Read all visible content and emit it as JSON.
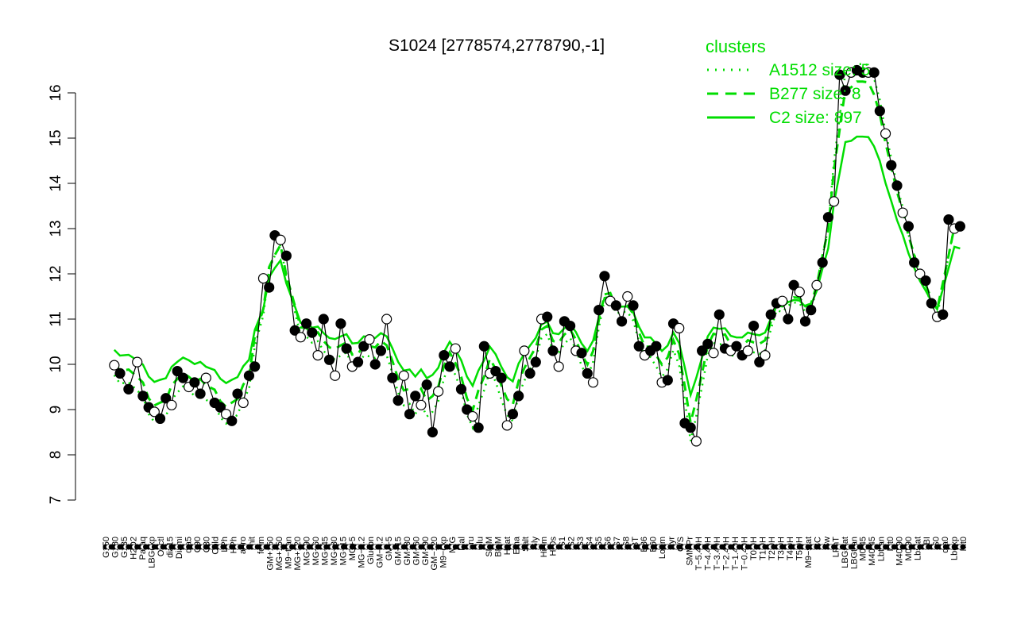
{
  "chart_data": {
    "type": "line",
    "title": "S1024 [2778574,2778790,-1]",
    "xlabel": "",
    "ylabel": "",
    "ylim": [
      7,
      16.5
    ],
    "yticks": [
      7,
      8,
      9,
      10,
      11,
      12,
      13,
      14,
      15,
      16
    ],
    "grid": false,
    "legend": {
      "title": "clusters",
      "placement": "top-right",
      "entries": [
        {
          "label": "A1512 size: 5",
          "style": "dotted"
        },
        {
          "label": "B277 size: 8",
          "style": "dashed"
        },
        {
          "label": "C2 size: 897",
          "style": "solid"
        }
      ]
    },
    "colors": {
      "cluster": "#00dd00",
      "marker": "#000000"
    },
    "x_labels": [
      "G150",
      "G180",
      "G135",
      "H2O2",
      "Paraq",
      "LBGexp",
      "Oxctl",
      "dia15",
      "Diami",
      "dia5",
      "C90",
      "C30",
      "Cold",
      "LPh",
      "HPh",
      "aero",
      "nit",
      "ferm",
      "GM+150",
      "MG+150",
      "M9-tran",
      "MG+120",
      "MG+90",
      "MG+60",
      "MG+45",
      "MG+30",
      "MG+15",
      "MG+5",
      "MG-0.2",
      "Glucon",
      "GM-0.2",
      "GM-5",
      "GM-15",
      "GM-30",
      "GM-60",
      "GM-90",
      "GM-120",
      "M9-exp",
      "M/G",
      "Mal",
      "Fru",
      "Glu",
      "SMM",
      "BMM",
      "Heat",
      "Etha",
      "Salt",
      "Gly",
      "HiTm",
      "HiOs",
      "S1",
      "S2",
      "S3",
      "S4",
      "S5",
      "S6",
      "S7",
      "S8",
      "BT",
      "B36",
      "B60",
      "LoTm",
      "Pyr",
      "G/S",
      "SMMPr",
      "T-5.40H",
      "T-4.40H",
      "T-3.40H",
      "T-2.40H",
      "T-1.40H",
      "T-0.40H",
      "T0.0H",
      "T1.0H",
      "T2.0H",
      "T3.0H",
      "T4.0H",
      "T5.0H",
      "M9-stat",
      "BC",
      "Sw",
      "LPhT",
      "LBGstat",
      "LBGtran",
      "M0t45",
      "M40t45",
      "Lbtran",
      "Mt0",
      "M40t90",
      "M0t90",
      "Lbstat",
      "BI",
      "S0",
      "dia0",
      "Lbexp",
      "Mt0b"
    ],
    "x_label_text": [
      "G150",
      "G180",
      "G135",
      "H2O2",
      "Paraq",
      "LBGexp",
      "Oxctl",
      "dia15",
      "Diami",
      "dia5",
      "C90",
      "C30",
      "Cold",
      "LPh",
      "HPh",
      "aero",
      "nit",
      "ferm",
      "GM+150",
      "MG+150",
      "M9−tran",
      "MG+120",
      "MG+90",
      "MG+60",
      "MG+45",
      "MG+30",
      "MG+15",
      "MG+5",
      "MG−0.2",
      "Glucon",
      "GM−0.2",
      "GM−5",
      "GM−15",
      "GM−30",
      "GM−60",
      "GM−90",
      "GM−120",
      "M9−exp",
      "M/G",
      "Mal",
      "Fru",
      "Glu",
      "SMM",
      "BMM",
      "Heat",
      "Etha",
      "Salt",
      "Gly",
      "HiTm",
      "HiOs",
      "S1",
      "S2",
      "S3",
      "S4",
      "S5",
      "S6",
      "S7",
      "S8",
      "BT",
      "B36",
      "B60",
      "LoTm",
      "Pyr",
      "G/S",
      "SMMPr",
      "T−5.40H",
      "T−4.40H",
      "T−3.40H",
      "T−2.40H",
      "T−1.40H",
      "T−0.40H",
      "T0.0H",
      "T1.0H",
      "T2.0H",
      "T3.0H",
      "T4.0H",
      "T5.0H",
      "M9−stat",
      "BC",
      "Sw",
      "LPhT",
      "LBGstat",
      "LBGtran",
      "M0t45",
      "M40t45",
      "Lbtran",
      "Mt0",
      "M40t90",
      "M0t90",
      "Lbstat",
      "BI",
      "S0",
      "dia0",
      "Lbexp",
      "Mt0"
    ],
    "x_count": 300,
    "series": [
      {
        "name": "S1024",
        "points": [
          [
            3,
            9.98
          ],
          [
            5,
            9.8
          ],
          [
            8,
            9.45
          ],
          [
            11,
            10.05
          ],
          [
            13,
            9.3
          ],
          [
            15,
            9.05
          ],
          [
            17,
            8.95
          ],
          [
            19,
            8.8
          ],
          [
            21,
            9.25
          ],
          [
            23,
            9.1
          ],
          [
            25,
            9.85
          ],
          [
            27,
            9.7
          ],
          [
            29,
            9.5
          ],
          [
            31,
            9.6
          ],
          [
            33,
            9.35
          ],
          [
            35,
            9.7
          ],
          [
            38,
            9.15
          ],
          [
            40,
            9.05
          ],
          [
            42,
            8.9
          ],
          [
            44,
            8.75
          ],
          [
            46,
            9.35
          ],
          [
            48,
            9.15
          ],
          [
            50,
            9.75
          ],
          [
            52,
            9.95
          ],
          [
            55,
            11.9
          ],
          [
            57,
            11.7
          ],
          [
            59,
            12.85
          ],
          [
            61,
            12.75
          ],
          [
            63,
            12.4
          ],
          [
            66,
            10.75
          ],
          [
            68,
            10.6
          ],
          [
            70,
            10.9
          ],
          [
            72,
            10.7
          ],
          [
            74,
            10.2
          ],
          [
            76,
            11.0
          ],
          [
            78,
            10.1
          ],
          [
            80,
            9.75
          ],
          [
            82,
            10.9
          ],
          [
            84,
            10.35
          ],
          [
            86,
            9.95
          ],
          [
            88,
            10.05
          ],
          [
            90,
            10.4
          ],
          [
            92,
            10.55
          ],
          [
            94,
            10.0
          ],
          [
            96,
            10.3
          ],
          [
            98,
            11.0
          ],
          [
            100,
            9.7
          ],
          [
            102,
            9.2
          ],
          [
            104,
            9.75
          ],
          [
            106,
            8.9
          ],
          [
            108,
            9.3
          ],
          [
            110,
            9.1
          ],
          [
            112,
            9.55
          ],
          [
            114,
            8.5
          ],
          [
            116,
            9.4
          ],
          [
            118,
            10.2
          ],
          [
            120,
            9.95
          ],
          [
            122,
            10.35
          ],
          [
            124,
            9.45
          ],
          [
            126,
            9.0
          ],
          [
            128,
            8.85
          ],
          [
            130,
            8.6
          ],
          [
            132,
            10.4
          ],
          [
            134,
            9.8
          ],
          [
            136,
            9.85
          ],
          [
            138,
            9.7
          ],
          [
            140,
            8.65
          ],
          [
            142,
            8.9
          ],
          [
            144,
            9.3
          ],
          [
            146,
            10.3
          ],
          [
            148,
            9.8
          ],
          [
            150,
            10.05
          ],
          [
            152,
            11.0
          ],
          [
            154,
            11.05
          ],
          [
            156,
            10.3
          ],
          [
            158,
            9.95
          ],
          [
            160,
            10.95
          ],
          [
            162,
            10.85
          ],
          [
            164,
            10.3
          ],
          [
            166,
            10.25
          ],
          [
            168,
            9.8
          ],
          [
            170,
            9.6
          ],
          [
            172,
            11.2
          ],
          [
            174,
            11.95
          ],
          [
            176,
            11.4
          ],
          [
            178,
            11.3
          ],
          [
            180,
            10.95
          ],
          [
            182,
            11.5
          ],
          [
            184,
            11.3
          ],
          [
            186,
            10.4
          ],
          [
            188,
            10.2
          ],
          [
            190,
            10.3
          ],
          [
            192,
            10.4
          ],
          [
            194,
            9.6
          ],
          [
            196,
            9.65
          ],
          [
            198,
            10.9
          ],
          [
            200,
            10.8
          ],
          [
            202,
            8.7
          ],
          [
            204,
            8.6
          ],
          [
            206,
            8.3
          ],
          [
            208,
            10.3
          ],
          [
            210,
            10.45
          ],
          [
            212,
            10.25
          ],
          [
            214,
            11.1
          ],
          [
            216,
            10.35
          ],
          [
            218,
            10.3
          ],
          [
            220,
            10.4
          ],
          [
            222,
            10.2
          ],
          [
            224,
            10.3
          ],
          [
            226,
            10.85
          ],
          [
            228,
            10.05
          ],
          [
            230,
            10.2
          ],
          [
            232,
            11.1
          ],
          [
            234,
            11.35
          ],
          [
            236,
            11.4
          ],
          [
            238,
            11.0
          ],
          [
            240,
            11.75
          ],
          [
            242,
            11.6
          ],
          [
            244,
            10.95
          ],
          [
            246,
            11.2
          ],
          [
            248,
            11.75
          ],
          [
            250,
            12.25
          ],
          [
            252,
            13.25
          ],
          [
            254,
            13.6
          ],
          [
            256,
            16.4
          ],
          [
            258,
            16.05
          ],
          [
            260,
            16.45
          ],
          [
            262,
            16.5
          ],
          [
            264,
            16.45
          ],
          [
            266,
            16.45
          ],
          [
            268,
            16.45
          ],
          [
            270,
            15.6
          ],
          [
            272,
            15.1
          ],
          [
            274,
            14.4
          ],
          [
            276,
            13.95
          ],
          [
            278,
            13.35
          ],
          [
            280,
            13.05
          ],
          [
            282,
            12.25
          ],
          [
            284,
            12.0
          ],
          [
            286,
            11.85
          ],
          [
            288,
            11.35
          ],
          [
            290,
            11.05
          ],
          [
            292,
            11.1
          ],
          [
            294,
            13.2
          ],
          [
            296,
            13.0
          ],
          [
            298,
            13.05
          ]
        ]
      }
    ]
  }
}
